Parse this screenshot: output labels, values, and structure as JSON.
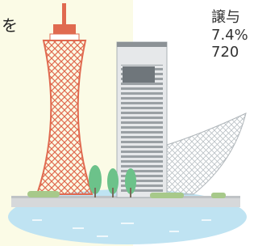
{
  "left_text": "を",
  "right_lines": [
    "譲与",
    "7.4%",
    "720"
  ]
}
